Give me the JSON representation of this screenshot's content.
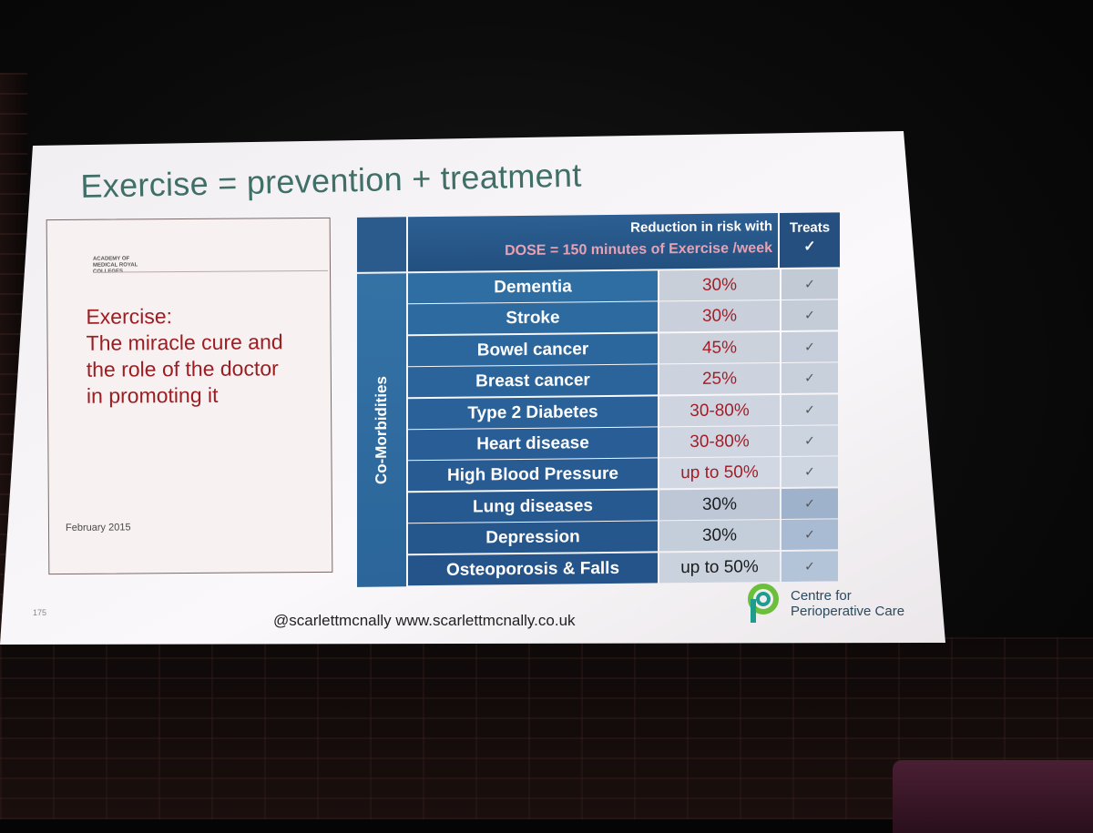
{
  "slide": {
    "title": "Exercise = prevention + treatment",
    "page_number": "175",
    "footer": "@scarlettmcnally www.scarlettmcnally.co.uk"
  },
  "document": {
    "org_lines": [
      "ACADEMY OF",
      "MEDICAL ROYAL",
      "COLLEGES"
    ],
    "title_lines": [
      "Exercise:",
      "The miracle cure and",
      "the role of the doctor",
      "in promoting it"
    ],
    "date": "February 2015"
  },
  "table": {
    "header_line1": "Reduction in risk with",
    "header_line2": "DOSE = 150 minutes of Exercise /week",
    "treats_label": "Treats",
    "treats_mark": "✓",
    "side_label": "Co-Morbidities",
    "rows": [
      {
        "name": "Dementia",
        "value": "30%",
        "check": "✓"
      },
      {
        "name": "Stroke",
        "value": "30%",
        "check": "✓"
      },
      {
        "name": "Bowel cancer",
        "value": "45%",
        "check": "✓"
      },
      {
        "name": "Breast cancer",
        "value": "25%",
        "check": "✓"
      },
      {
        "name": "Type 2 Diabetes",
        "value": "30-80%",
        "check": "✓"
      },
      {
        "name": "Heart disease",
        "value": "30-80%",
        "check": "✓"
      },
      {
        "name": "High Blood Pressure",
        "value": "up to 50%",
        "check": "✓"
      },
      {
        "name": "Lung diseases",
        "value": "30%",
        "check": "✓"
      },
      {
        "name": "Depression",
        "value": "30%",
        "check": "✓"
      },
      {
        "name": "Osteoporosis & Falls",
        "value": "up to 50%",
        "check": "✓"
      }
    ]
  },
  "logo": {
    "lines": [
      "Centre for",
      "Perioperative Care"
    ],
    "colors": {
      "green": "#6bbf3a",
      "teal": "#1e9c8e"
    }
  },
  "colors": {
    "title": "#3f6f66",
    "doc_red": "#9c1d22",
    "value_red": "#a41d26",
    "value_dark": "#1c1c1c",
    "table_blue": "#2b5f91"
  }
}
